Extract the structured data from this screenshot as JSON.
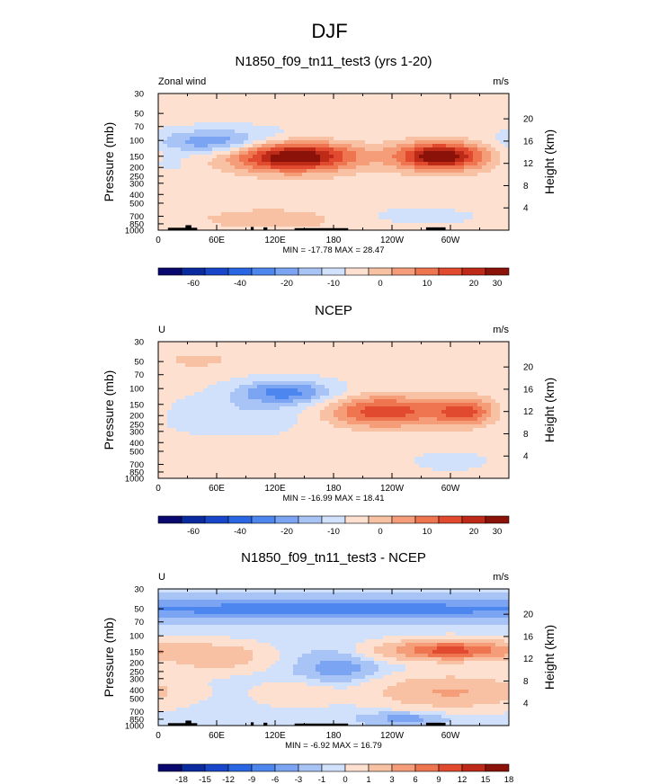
{
  "figure": {
    "title": "DJF"
  },
  "colors": {
    "palette_wind": [
      "#08086e",
      "#0a2ba0",
      "#1747c8",
      "#2a66e2",
      "#4d86ee",
      "#7ba5f2",
      "#a8c4f6",
      "#d2e1fb",
      "#fde0d0",
      "#f9c1a4",
      "#f59c78",
      "#ef7450",
      "#e14a2e",
      "#bd2a18",
      "#8a1208"
    ],
    "palette_diff": [
      "#08086e",
      "#0a2ba0",
      "#1747c8",
      "#2a66e2",
      "#4d86ee",
      "#7ba5f2",
      "#a8c4f6",
      "#d2e1fb",
      "#fde0d0",
      "#f9c1a4",
      "#f59c78",
      "#ef7450",
      "#e14a2e",
      "#bd2a18",
      "#8a1208"
    ]
  },
  "chart_data": [
    {
      "type": "heatmap",
      "title": "N1850_f09_tn11_test3 (yrs 1-20)",
      "left_label": "Zonal wind",
      "units": "m/s",
      "ylabel": "Pressure (mb)",
      "ylabel_right": "Height (km)",
      "x_ticks": [
        "0",
        "60E",
        "120E",
        "180",
        "120W",
        "60W"
      ],
      "x_tick_values": [
        0,
        60,
        120,
        180,
        240,
        300
      ],
      "xlim": [
        0,
        360
      ],
      "y_ticks": [
        "30",
        "50",
        "70",
        "100",
        "150",
        "200",
        "250",
        "300",
        "400",
        "500",
        "700",
        "850",
        "1000"
      ],
      "y_tick_values": [
        30,
        50,
        70,
        100,
        150,
        200,
        250,
        300,
        400,
        500,
        700,
        850,
        1000
      ],
      "ylim": [
        1000,
        30
      ],
      "height_ticks": [
        "20",
        "16",
        "12",
        "8",
        "4"
      ],
      "height_tick_values": [
        20,
        16,
        12,
        8,
        4
      ],
      "stats": "MIN = -17.78  MAX = 28.47",
      "levels": [
        "-60",
        "-40",
        "-20",
        "-10",
        "0",
        "10",
        "20",
        "30"
      ],
      "field": [
        {
          "lon": 140,
          "p": 150,
          "dlon": 45,
          "dp": 0.55,
          "amp": 28
        },
        {
          "lon": 290,
          "p": 150,
          "dlon": 32,
          "dp": 0.5,
          "amp": 27
        },
        {
          "lon": 55,
          "p": 105,
          "dlon": 40,
          "dp": 0.45,
          "amp": -12
        },
        {
          "lon": 130,
          "p": 95,
          "dlon": 60,
          "dp": 0.5,
          "amp": -3
        },
        {
          "lon": 10,
          "p": 180,
          "dlon": 12,
          "dp": 0.3,
          "amp": -4
        },
        {
          "lon": 120,
          "p": 750,
          "dlon": 60,
          "dp": 0.4,
          "amp": 5
        },
        {
          "lon": 260,
          "p": 700,
          "dlon": 60,
          "dp": 0.35,
          "amp": -3
        }
      ],
      "topography": [
        {
          "lon0": 10,
          "lon1": 40,
          "p": 940
        },
        {
          "lon0": 28,
          "lon1": 34,
          "p": 880
        },
        {
          "lon0": 95,
          "lon1": 98,
          "p": 920
        },
        {
          "lon0": 108,
          "lon1": 112,
          "p": 930
        },
        {
          "lon0": 140,
          "lon1": 195,
          "p": 950
        },
        {
          "lon0": 275,
          "lon1": 295,
          "p": 930
        }
      ]
    },
    {
      "type": "heatmap",
      "title": "NCEP",
      "left_label": "U",
      "units": "m/s",
      "ylabel": "Pressure (mb)",
      "ylabel_right": "Height (km)",
      "x_ticks": [
        "0",
        "60E",
        "120E",
        "180",
        "120W",
        "60W"
      ],
      "x_tick_values": [
        0,
        60,
        120,
        180,
        240,
        300
      ],
      "xlim": [
        0,
        360
      ],
      "y_ticks": [
        "30",
        "50",
        "70",
        "100",
        "150",
        "200",
        "250",
        "300",
        "400",
        "500",
        "700",
        "850",
        "1000"
      ],
      "y_tick_values": [
        30,
        50,
        70,
        100,
        150,
        200,
        250,
        300,
        400,
        500,
        700,
        850,
        1000
      ],
      "ylim": [
        1000,
        30
      ],
      "height_ticks": [
        "20",
        "16",
        "12",
        "8",
        "4"
      ],
      "height_tick_values": [
        20,
        16,
        12,
        8,
        4
      ],
      "stats": "MIN = -16.99  MAX = 18.41",
      "levels": [
        "-60",
        "-40",
        "-20",
        "-10",
        "0",
        "10",
        "20",
        "30"
      ],
      "field": [
        {
          "lon": 232,
          "p": 180,
          "dlon": 40,
          "dp": 0.55,
          "amp": 18
        },
        {
          "lon": 315,
          "p": 180,
          "dlon": 22,
          "dp": 0.5,
          "amp": 16
        },
        {
          "lon": 130,
          "p": 110,
          "dlon": 35,
          "dp": 0.45,
          "amp": -15
        },
        {
          "lon": 80,
          "p": 200,
          "dlon": 55,
          "dp": 0.7,
          "amp": -5
        },
        {
          "lon": 40,
          "p": 48,
          "dlon": 25,
          "dp": 0.3,
          "amp": 4
        },
        {
          "lon": 300,
          "p": 650,
          "dlon": 25,
          "dp": 0.3,
          "amp": -5
        }
      ],
      "topography": []
    },
    {
      "type": "heatmap",
      "title": "N1850_f09_tn11_test3 - NCEP",
      "left_label": "U",
      "units": "m/s",
      "ylabel": "Pressure (mb)",
      "ylabel_right": "Height (km)",
      "x_ticks": [
        "0",
        "60E",
        "120E",
        "180",
        "120W",
        "60W"
      ],
      "x_tick_values": [
        0,
        60,
        120,
        180,
        240,
        300
      ],
      "xlim": [
        0,
        360
      ],
      "y_ticks": [
        "30",
        "50",
        "70",
        "100",
        "150",
        "200",
        "250",
        "300",
        "400",
        "500",
        "700",
        "850",
        "1000"
      ],
      "y_tick_values": [
        30,
        50,
        70,
        100,
        150,
        200,
        250,
        300,
        400,
        500,
        700,
        850,
        1000
      ],
      "ylim": [
        1000,
        30
      ],
      "height_ticks": [
        "20",
        "16",
        "12",
        "8",
        "4"
      ],
      "height_tick_values": [
        20,
        16,
        12,
        8,
        4
      ],
      "stats": "MIN = -6.92  MAX = 16.79",
      "levels": [
        "-18",
        "-15",
        "-12",
        "-9",
        "-6",
        "-3",
        "-1",
        "0",
        "1",
        "3",
        "6",
        "9",
        "12",
        "15",
        "18"
      ],
      "field": [
        {
          "lon": 180,
          "p": 50,
          "dlon": 400,
          "dp": 0.35,
          "amp": -4
        },
        {
          "lon": 300,
          "p": 145,
          "dlon": 45,
          "dp": 0.35,
          "amp": 13
        },
        {
          "lon": 60,
          "p": 170,
          "dlon": 35,
          "dp": 0.5,
          "amp": 5
        },
        {
          "lon": 300,
          "p": 420,
          "dlon": 55,
          "dp": 0.6,
          "amp": 6
        },
        {
          "lon": 185,
          "p": 230,
          "dlon": 30,
          "dp": 0.6,
          "amp": -2
        },
        {
          "lon": 140,
          "p": 450,
          "dlon": 30,
          "dp": 0.5,
          "amp": 2
        },
        {
          "lon": 255,
          "p": 820,
          "dlon": 30,
          "dp": 0.25,
          "amp": -2
        }
      ],
      "topography": [
        {
          "lon0": 10,
          "lon1": 40,
          "p": 940
        },
        {
          "lon0": 28,
          "lon1": 34,
          "p": 880
        },
        {
          "lon0": 95,
          "lon1": 98,
          "p": 920
        },
        {
          "lon0": 108,
          "lon1": 112,
          "p": 930
        },
        {
          "lon0": 140,
          "lon1": 195,
          "p": 950
        },
        {
          "lon0": 275,
          "lon1": 295,
          "p": 930
        }
      ]
    }
  ]
}
